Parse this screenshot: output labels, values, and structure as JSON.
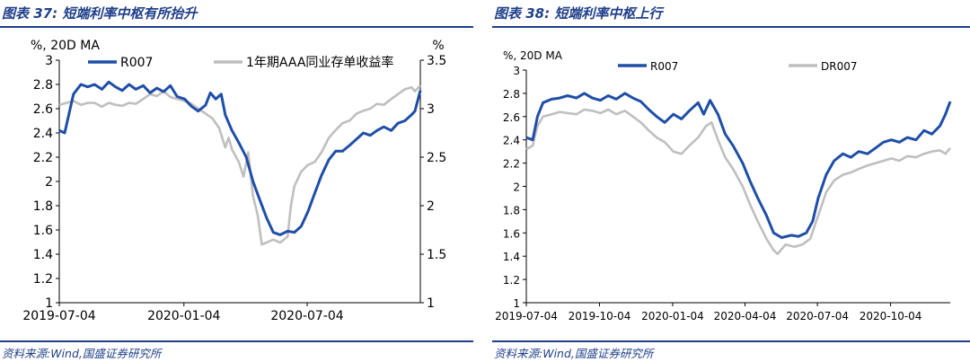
{
  "left": {
    "figure_label": "图表 37:",
    "figure_title": "短端利率中枢有所抬升",
    "source": "资料来源:Wind,国盛证券研究所"
  },
  "right": {
    "figure_label": "图表 38:",
    "figure_title": "短端利率中枢上行",
    "source": "资料来源:Wind,国盛证券研究所"
  },
  "colors": {
    "primary": "#1f4ea8",
    "secondary": "#bfbfbf",
    "heading": "#1f3f8a",
    "axis": "#000000"
  },
  "chart_data": [
    {
      "type": "line",
      "ylabel": "%, 20D MA",
      "y2label": "%",
      "ylim": [
        1,
        3
      ],
      "y2lim": [
        1,
        3.5
      ],
      "yticks": [
        1,
        1.2,
        1.4,
        1.6,
        1.8,
        2,
        2.2,
        2.4,
        2.6,
        2.8,
        3
      ],
      "ytick_labels": [
        "1",
        "1.2",
        "1.4",
        "1.6",
        "1.8",
        "2",
        "2.2",
        "2.4",
        "2.6",
        "2.8",
        "3"
      ],
      "y2ticks": [
        1,
        1.5,
        2,
        2.5,
        3,
        3.5
      ],
      "y2tick_labels": [
        "1",
        "1.5",
        "2",
        "2.5",
        "3",
        "3.5"
      ],
      "xlim": [
        "2019-07-04",
        "2020-12-18"
      ],
      "xticks": [
        "2019-07-04",
        "2020-01-04",
        "2020-07-04"
      ],
      "legend": "top",
      "grid": false,
      "series": [
        {
          "name": "R007",
          "axis": "left",
          "color": "#1f4ea8",
          "points": [
            [
              "2019-07-04",
              2.42
            ],
            [
              "2019-07-12",
              2.4
            ],
            [
              "2019-07-18",
              2.55
            ],
            [
              "2019-07-25",
              2.72
            ],
            [
              "2019-08-05",
              2.8
            ],
            [
              "2019-08-15",
              2.78
            ],
            [
              "2019-08-25",
              2.8
            ],
            [
              "2019-09-05",
              2.76
            ],
            [
              "2019-09-15",
              2.82
            ],
            [
              "2019-09-25",
              2.78
            ],
            [
              "2019-10-05",
              2.75
            ],
            [
              "2019-10-15",
              2.8
            ],
            [
              "2019-10-25",
              2.76
            ],
            [
              "2019-11-05",
              2.79
            ],
            [
              "2019-11-15",
              2.73
            ],
            [
              "2019-11-25",
              2.77
            ],
            [
              "2019-12-05",
              2.74
            ],
            [
              "2019-12-15",
              2.79
            ],
            [
              "2019-12-25",
              2.7
            ],
            [
              "2020-01-05",
              2.68
            ],
            [
              "2020-01-15",
              2.62
            ],
            [
              "2020-01-25",
              2.58
            ],
            [
              "2020-02-05",
              2.63
            ],
            [
              "2020-02-12",
              2.73
            ],
            [
              "2020-02-20",
              2.68
            ],
            [
              "2020-02-28",
              2.72
            ],
            [
              "2020-03-05",
              2.55
            ],
            [
              "2020-03-15",
              2.42
            ],
            [
              "2020-03-25",
              2.32
            ],
            [
              "2020-04-05",
              2.2
            ],
            [
              "2020-04-15",
              2.0
            ],
            [
              "2020-04-25",
              1.85
            ],
            [
              "2020-05-05",
              1.7
            ],
            [
              "2020-05-15",
              1.58
            ],
            [
              "2020-05-25",
              1.56
            ],
            [
              "2020-06-05",
              1.59
            ],
            [
              "2020-06-15",
              1.58
            ],
            [
              "2020-06-25",
              1.63
            ],
            [
              "2020-07-05",
              1.75
            ],
            [
              "2020-07-15",
              1.9
            ],
            [
              "2020-07-25",
              2.05
            ],
            [
              "2020-08-05",
              2.18
            ],
            [
              "2020-08-15",
              2.25
            ],
            [
              "2020-08-25",
              2.25
            ],
            [
              "2020-09-05",
              2.3
            ],
            [
              "2020-09-15",
              2.35
            ],
            [
              "2020-09-25",
              2.4
            ],
            [
              "2020-10-05",
              2.38
            ],
            [
              "2020-10-15",
              2.42
            ],
            [
              "2020-10-25",
              2.45
            ],
            [
              "2020-11-05",
              2.42
            ],
            [
              "2020-11-15",
              2.48
            ],
            [
              "2020-11-25",
              2.5
            ],
            [
              "2020-12-05",
              2.55
            ],
            [
              "2020-12-10",
              2.58
            ],
            [
              "2020-12-18",
              2.75
            ]
          ]
        },
        {
          "name": "1年期AAA同业存单收益率",
          "axis": "right",
          "color": "#bfbfbf",
          "points": [
            [
              "2019-07-04",
              3.04
            ],
            [
              "2019-07-15",
              3.06
            ],
            [
              "2019-07-25",
              3.08
            ],
            [
              "2019-08-05",
              3.04
            ],
            [
              "2019-08-15",
              3.06
            ],
            [
              "2019-08-25",
              3.06
            ],
            [
              "2019-09-05",
              3.02
            ],
            [
              "2019-09-15",
              3.06
            ],
            [
              "2019-09-25",
              3.04
            ],
            [
              "2019-10-05",
              3.03
            ],
            [
              "2019-10-15",
              3.06
            ],
            [
              "2019-10-25",
              3.05
            ],
            [
              "2019-11-05",
              3.1
            ],
            [
              "2019-11-15",
              3.15
            ],
            [
              "2019-11-25",
              3.13
            ],
            [
              "2019-12-05",
              3.18
            ],
            [
              "2019-12-15",
              3.12
            ],
            [
              "2019-12-25",
              3.1
            ],
            [
              "2020-01-05",
              3.08
            ],
            [
              "2020-01-15",
              3.05
            ],
            [
              "2020-01-25",
              3.0
            ],
            [
              "2020-02-05",
              2.95
            ],
            [
              "2020-02-15",
              2.9
            ],
            [
              "2020-02-25",
              2.8
            ],
            [
              "2020-03-05",
              2.6
            ],
            [
              "2020-03-10",
              2.7
            ],
            [
              "2020-03-15",
              2.58
            ],
            [
              "2020-03-25",
              2.45
            ],
            [
              "2020-04-01",
              2.3
            ],
            [
              "2020-04-08",
              2.55
            ],
            [
              "2020-04-15",
              2.1
            ],
            [
              "2020-04-22",
              1.9
            ],
            [
              "2020-04-28",
              1.6
            ],
            [
              "2020-05-05",
              1.62
            ],
            [
              "2020-05-15",
              1.65
            ],
            [
              "2020-05-25",
              1.62
            ],
            [
              "2020-06-05",
              1.68
            ],
            [
              "2020-06-10",
              2.0
            ],
            [
              "2020-06-15",
              2.2
            ],
            [
              "2020-06-25",
              2.35
            ],
            [
              "2020-07-05",
              2.42
            ],
            [
              "2020-07-15",
              2.45
            ],
            [
              "2020-07-25",
              2.55
            ],
            [
              "2020-08-05",
              2.7
            ],
            [
              "2020-08-15",
              2.78
            ],
            [
              "2020-08-25",
              2.85
            ],
            [
              "2020-09-05",
              2.88
            ],
            [
              "2020-09-15",
              2.95
            ],
            [
              "2020-09-25",
              2.98
            ],
            [
              "2020-10-05",
              3.0
            ],
            [
              "2020-10-15",
              3.05
            ],
            [
              "2020-10-25",
              3.04
            ],
            [
              "2020-11-05",
              3.1
            ],
            [
              "2020-11-15",
              3.15
            ],
            [
              "2020-11-25",
              3.2
            ],
            [
              "2020-12-05",
              3.22
            ],
            [
              "2020-12-10",
              3.18
            ],
            [
              "2020-12-18",
              3.24
            ]
          ]
        }
      ]
    },
    {
      "type": "line",
      "ylabel": "%, 20D MA",
      "ylim": [
        1,
        3
      ],
      "yticks": [
        1,
        1.2,
        1.4,
        1.6,
        1.8,
        2,
        2.2,
        2.4,
        2.6,
        2.8,
        3
      ],
      "ytick_labels": [
        "1",
        "1.2",
        "1.4",
        "1.6",
        "1.8",
        "2",
        "2.2",
        "2.4",
        "2.6",
        "2.8",
        "3"
      ],
      "xlim": [
        "2019-07-04",
        "2020-12-18"
      ],
      "xticks": [
        "2019-07-04",
        "2019-10-04",
        "2020-01-04",
        "2020-04-04",
        "2020-07-04",
        "2020-10-04"
      ],
      "legend": "top",
      "grid": false,
      "series": [
        {
          "name": "R007",
          "color": "#1f4ea8",
          "points": [
            [
              "2019-07-04",
              2.42
            ],
            [
              "2019-07-12",
              2.4
            ],
            [
              "2019-07-18",
              2.6
            ],
            [
              "2019-07-25",
              2.72
            ],
            [
              "2019-08-05",
              2.75
            ],
            [
              "2019-08-15",
              2.76
            ],
            [
              "2019-08-25",
              2.78
            ],
            [
              "2019-09-05",
              2.76
            ],
            [
              "2019-09-15",
              2.8
            ],
            [
              "2019-09-25",
              2.76
            ],
            [
              "2019-10-05",
              2.74
            ],
            [
              "2019-10-15",
              2.78
            ],
            [
              "2019-10-25",
              2.75
            ],
            [
              "2019-11-05",
              2.8
            ],
            [
              "2019-11-15",
              2.76
            ],
            [
              "2019-11-25",
              2.73
            ],
            [
              "2019-12-05",
              2.66
            ],
            [
              "2019-12-15",
              2.6
            ],
            [
              "2019-12-25",
              2.55
            ],
            [
              "2020-01-05",
              2.62
            ],
            [
              "2020-01-15",
              2.58
            ],
            [
              "2020-01-25",
              2.65
            ],
            [
              "2020-02-05",
              2.72
            ],
            [
              "2020-02-12",
              2.62
            ],
            [
              "2020-02-20",
              2.74
            ],
            [
              "2020-03-01",
              2.62
            ],
            [
              "2020-03-10",
              2.45
            ],
            [
              "2020-03-20",
              2.35
            ],
            [
              "2020-04-01",
              2.2
            ],
            [
              "2020-04-10",
              2.05
            ],
            [
              "2020-04-20",
              1.9
            ],
            [
              "2020-05-01",
              1.75
            ],
            [
              "2020-05-10",
              1.6
            ],
            [
              "2020-05-20",
              1.56
            ],
            [
              "2020-06-01",
              1.58
            ],
            [
              "2020-06-10",
              1.57
            ],
            [
              "2020-06-20",
              1.6
            ],
            [
              "2020-06-28",
              1.7
            ],
            [
              "2020-07-05",
              1.9
            ],
            [
              "2020-07-15",
              2.1
            ],
            [
              "2020-07-25",
              2.22
            ],
            [
              "2020-08-05",
              2.28
            ],
            [
              "2020-08-15",
              2.25
            ],
            [
              "2020-08-25",
              2.3
            ],
            [
              "2020-09-05",
              2.28
            ],
            [
              "2020-09-15",
              2.33
            ],
            [
              "2020-09-25",
              2.38
            ],
            [
              "2020-10-05",
              2.4
            ],
            [
              "2020-10-15",
              2.38
            ],
            [
              "2020-10-25",
              2.42
            ],
            [
              "2020-11-05",
              2.4
            ],
            [
              "2020-11-15",
              2.48
            ],
            [
              "2020-11-25",
              2.45
            ],
            [
              "2020-12-05",
              2.52
            ],
            [
              "2020-12-12",
              2.62
            ],
            [
              "2020-12-18",
              2.73
            ]
          ]
        },
        {
          "name": "DR007",
          "color": "#bfbfbf",
          "points": [
            [
              "2019-07-04",
              2.32
            ],
            [
              "2019-07-12",
              2.35
            ],
            [
              "2019-07-18",
              2.52
            ],
            [
              "2019-07-25",
              2.6
            ],
            [
              "2019-08-05",
              2.62
            ],
            [
              "2019-08-15",
              2.64
            ],
            [
              "2019-08-25",
              2.63
            ],
            [
              "2019-09-05",
              2.62
            ],
            [
              "2019-09-15",
              2.66
            ],
            [
              "2019-09-25",
              2.65
            ],
            [
              "2019-10-05",
              2.63
            ],
            [
              "2019-10-15",
              2.66
            ],
            [
              "2019-10-25",
              2.62
            ],
            [
              "2019-11-05",
              2.65
            ],
            [
              "2019-11-15",
              2.6
            ],
            [
              "2019-11-25",
              2.55
            ],
            [
              "2019-12-05",
              2.48
            ],
            [
              "2019-12-15",
              2.42
            ],
            [
              "2019-12-25",
              2.38
            ],
            [
              "2020-01-05",
              2.3
            ],
            [
              "2020-01-15",
              2.28
            ],
            [
              "2020-01-25",
              2.35
            ],
            [
              "2020-02-05",
              2.42
            ],
            [
              "2020-02-15",
              2.52
            ],
            [
              "2020-02-22",
              2.55
            ],
            [
              "2020-03-01",
              2.4
            ],
            [
              "2020-03-10",
              2.25
            ],
            [
              "2020-03-20",
              2.15
            ],
            [
              "2020-04-01",
              2.0
            ],
            [
              "2020-04-10",
              1.85
            ],
            [
              "2020-04-20",
              1.7
            ],
            [
              "2020-05-01",
              1.55
            ],
            [
              "2020-05-10",
              1.45
            ],
            [
              "2020-05-15",
              1.42
            ],
            [
              "2020-05-25",
              1.5
            ],
            [
              "2020-06-05",
              1.48
            ],
            [
              "2020-06-15",
              1.5
            ],
            [
              "2020-06-25",
              1.55
            ],
            [
              "2020-07-05",
              1.75
            ],
            [
              "2020-07-15",
              1.95
            ],
            [
              "2020-07-25",
              2.05
            ],
            [
              "2020-08-05",
              2.1
            ],
            [
              "2020-08-15",
              2.12
            ],
            [
              "2020-08-25",
              2.15
            ],
            [
              "2020-09-05",
              2.18
            ],
            [
              "2020-09-15",
              2.2
            ],
            [
              "2020-09-25",
              2.22
            ],
            [
              "2020-10-05",
              2.24
            ],
            [
              "2020-10-15",
              2.22
            ],
            [
              "2020-10-25",
              2.26
            ],
            [
              "2020-11-05",
              2.25
            ],
            [
              "2020-11-15",
              2.28
            ],
            [
              "2020-11-25",
              2.3
            ],
            [
              "2020-12-05",
              2.31
            ],
            [
              "2020-12-12",
              2.28
            ],
            [
              "2020-12-18",
              2.33
            ]
          ]
        }
      ]
    }
  ]
}
